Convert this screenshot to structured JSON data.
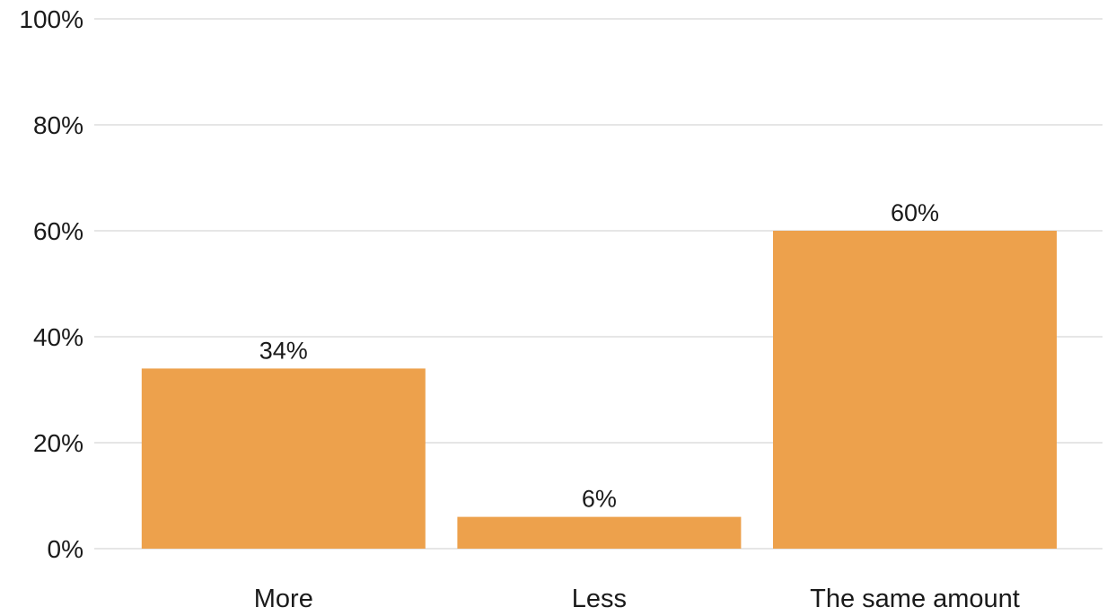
{
  "chart_data": {
    "type": "bar",
    "categories": [
      "More",
      "Less",
      "The same amount"
    ],
    "values": [
      34,
      6,
      60
    ],
    "data_labels": [
      "34%",
      "6%",
      "60%"
    ],
    "title": "",
    "xlabel": "",
    "ylabel": "",
    "ylim": [
      0,
      100
    ],
    "yticks": [
      0,
      20,
      40,
      60,
      80,
      100
    ],
    "ytick_labels": [
      "0%",
      "20%",
      "40%",
      "60%",
      "80%",
      "100%"
    ],
    "grid": true,
    "legend": "none",
    "bar_color": "#eda14c"
  }
}
